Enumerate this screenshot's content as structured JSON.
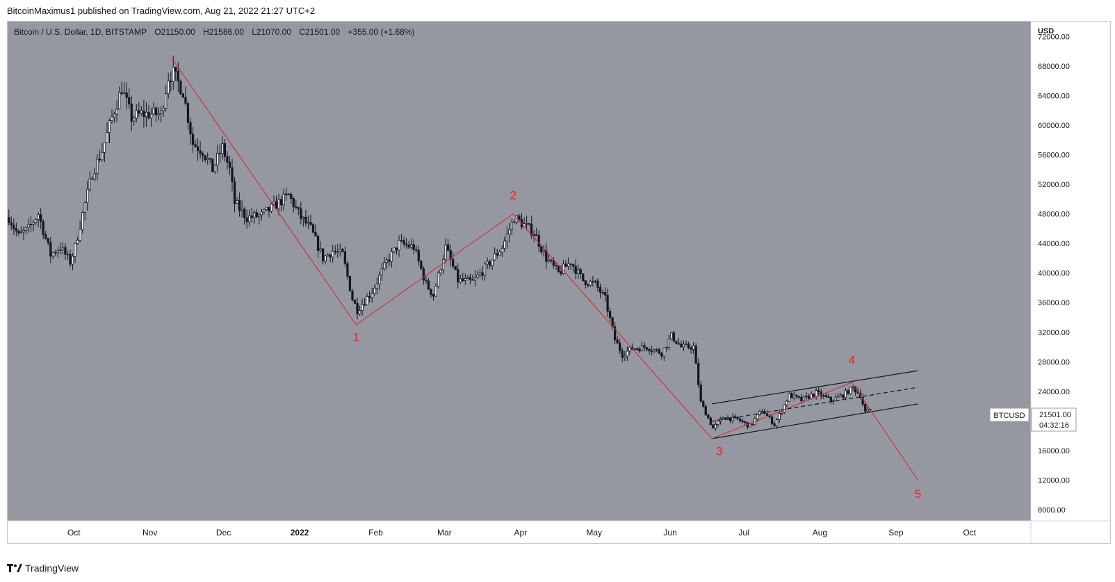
{
  "publisher": "BitcoinMaximus1 published on TradingView.com, Aug 21, 2022 21:27 UTC+2",
  "footer_logo_text": "TradingView",
  "colors": {
    "plot_bg": "#9598a1",
    "axis_bg": "#ffffff",
    "candle": "#131722",
    "wave_line": "#d32f2f",
    "label": "#ff1a1a",
    "channel": "#131722"
  },
  "legend": {
    "symbol": "Bitcoin / U.S. Dollar, 1D, BITSTAMP",
    "o_label": "O",
    "o_value": "21150.00",
    "h_label": "H",
    "h_value": "21586.00",
    "l_label": "L",
    "l_value": "21070.00",
    "c_label": "C",
    "c_value": "21501.00",
    "change": "+355.00 (+1.68%)"
  },
  "price_tag": {
    "symbol": "BTCUSD",
    "price": "21501.00",
    "countdown": "04:32:16"
  },
  "chart_data": {
    "type": "candlestick",
    "title": "Bitcoin / U.S. Dollar, 1D, BITSTAMP",
    "currency_label": "USD",
    "ylim": [
      6500,
      74000
    ],
    "y_ticks": [
      {
        "value": 72000,
        "label": "72000.00"
      },
      {
        "value": 68000,
        "label": "68000.00"
      },
      {
        "value": 64000,
        "label": "64000.00"
      },
      {
        "value": 60000,
        "label": "60000.00"
      },
      {
        "value": 56000,
        "label": "56000.00"
      },
      {
        "value": 52000,
        "label": "52000.00"
      },
      {
        "value": 48000,
        "label": "48000.00"
      },
      {
        "value": 44000,
        "label": "44000.00"
      },
      {
        "value": 40000,
        "label": "40000.00"
      },
      {
        "value": 36000,
        "label": "36000.00"
      },
      {
        "value": 32000,
        "label": "32000.00"
      },
      {
        "value": 28000,
        "label": "28000.00"
      },
      {
        "value": 24000,
        "label": "24000.00"
      },
      {
        "value": 16000,
        "label": "16000.00"
      },
      {
        "value": 12000,
        "label": "12000.00"
      },
      {
        "value": 8000,
        "label": "8000.00"
      }
    ],
    "x_range": [
      "2021-09-04",
      "2022-10-26"
    ],
    "x_ticks": [
      {
        "date": "2021-10-01",
        "label": "Oct"
      },
      {
        "date": "2021-11-01",
        "label": "Nov"
      },
      {
        "date": "2021-12-01",
        "label": "Dec"
      },
      {
        "date": "2022-01-01",
        "label": "2022",
        "bold": true
      },
      {
        "date": "2022-02-01",
        "label": "Feb"
      },
      {
        "date": "2022-03-01",
        "label": "Mar"
      },
      {
        "date": "2022-04-01",
        "label": "Apr"
      },
      {
        "date": "2022-05-01",
        "label": "May"
      },
      {
        "date": "2022-06-01",
        "label": "Jun"
      },
      {
        "date": "2022-07-01",
        "label": "Jul"
      },
      {
        "date": "2022-08-01",
        "label": "Aug"
      },
      {
        "date": "2022-09-01",
        "label": "Sep"
      },
      {
        "date": "2022-10-01",
        "label": "Oct"
      }
    ],
    "price_path": [
      [
        "2021-09-04",
        47500
      ],
      [
        "2021-09-08",
        45000
      ],
      [
        "2021-09-12",
        46000
      ],
      [
        "2021-09-16",
        48000
      ],
      [
        "2021-09-21",
        42500
      ],
      [
        "2021-09-25",
        43500
      ],
      [
        "2021-09-29",
        41500
      ],
      [
        "2021-10-01",
        43500
      ],
      [
        "2021-10-04",
        48000
      ],
      [
        "2021-10-08",
        53500
      ],
      [
        "2021-10-12",
        56500
      ],
      [
        "2021-10-16",
        61000
      ],
      [
        "2021-10-20",
        65000
      ],
      [
        "2021-10-24",
        61000
      ],
      [
        "2021-10-28",
        61500
      ],
      [
        "2021-11-01",
        61500
      ],
      [
        "2021-11-05",
        61500
      ],
      [
        "2021-11-08",
        66500
      ],
      [
        "2021-11-10",
        67000
      ],
      [
        "2021-11-14",
        64500
      ],
      [
        "2021-11-18",
        57500
      ],
      [
        "2021-11-22",
        56500
      ],
      [
        "2021-11-26",
        54000
      ],
      [
        "2021-11-30",
        57000
      ],
      [
        "2021-12-03",
        54000
      ],
      [
        "2021-12-05",
        49500
      ],
      [
        "2021-12-10",
        47500
      ],
      [
        "2021-12-16",
        47800
      ],
      [
        "2021-12-21",
        49000
      ],
      [
        "2021-12-27",
        50500
      ],
      [
        "2022-01-01",
        47500
      ],
      [
        "2022-01-05",
        46000
      ],
      [
        "2022-01-10",
        42000
      ],
      [
        "2022-01-14",
        43000
      ],
      [
        "2022-01-18",
        42500
      ],
      [
        "2022-01-22",
        36500
      ],
      [
        "2022-01-24",
        35000
      ],
      [
        "2022-01-30",
        37500
      ],
      [
        "2022-02-05",
        41500
      ],
      [
        "2022-02-10",
        44000
      ],
      [
        "2022-02-16",
        43500
      ],
      [
        "2022-02-21",
        38500
      ],
      [
        "2022-02-24",
        37000
      ],
      [
        "2022-03-01",
        43500
      ],
      [
        "2022-03-06",
        39000
      ],
      [
        "2022-03-12",
        38800
      ],
      [
        "2022-03-18",
        41000
      ],
      [
        "2022-03-24",
        43500
      ],
      [
        "2022-03-29",
        47500
      ],
      [
        "2022-04-02",
        46500
      ],
      [
        "2022-04-06",
        45500
      ],
      [
        "2022-04-11",
        42000
      ],
      [
        "2022-04-16",
        40000
      ],
      [
        "2022-04-21",
        41500
      ],
      [
        "2022-04-26",
        39000
      ],
      [
        "2022-05-01",
        38500
      ],
      [
        "2022-05-05",
        36500
      ],
      [
        "2022-05-09",
        31000
      ],
      [
        "2022-05-12",
        29000
      ],
      [
        "2022-05-16",
        29800
      ],
      [
        "2022-05-22",
        30000
      ],
      [
        "2022-05-28",
        29200
      ],
      [
        "2022-06-01",
        31500
      ],
      [
        "2022-06-05",
        30000
      ],
      [
        "2022-06-10",
        30000
      ],
      [
        "2022-06-13",
        22500
      ],
      [
        "2022-06-18",
        19000
      ],
      [
        "2022-06-22",
        20500
      ],
      [
        "2022-06-28",
        20200
      ],
      [
        "2022-07-03",
        19300
      ],
      [
        "2022-07-08",
        21500
      ],
      [
        "2022-07-13",
        19500
      ],
      [
        "2022-07-19",
        23500
      ],
      [
        "2022-07-24",
        22800
      ],
      [
        "2022-07-30",
        23800
      ],
      [
        "2022-08-05",
        22800
      ],
      [
        "2022-08-10",
        23500
      ],
      [
        "2022-08-14",
        24500
      ],
      [
        "2022-08-17",
        23500
      ],
      [
        "2022-08-19",
        21200
      ],
      [
        "2022-08-21",
        21501
      ]
    ],
    "annotations": {
      "wave_path": [
        [
          "2021-11-10",
          69000
        ],
        [
          "2022-01-24",
          33000
        ],
        [
          "2022-03-29",
          48000
        ],
        [
          "2022-06-18",
          17600
        ],
        [
          "2022-08-14",
          25200
        ],
        [
          "2022-09-10",
          12000
        ]
      ],
      "wave_labels": [
        {
          "text": "1",
          "date": "2022-01-24",
          "price": 30800
        },
        {
          "text": "2",
          "date": "2022-03-29",
          "price": 50000
        },
        {
          "text": "3",
          "date": "2022-06-21",
          "price": 15400
        },
        {
          "text": "4",
          "date": "2022-08-14",
          "price": 27700
        },
        {
          "text": "5",
          "date": "2022-09-10",
          "price": 9600
        }
      ],
      "channel": {
        "start_date": "2022-06-18",
        "end_date": "2022-09-10",
        "upper": [
          22300,
          26800
        ],
        "mid": [
          19950,
          24550
        ],
        "lower": [
          17600,
          22300
        ]
      }
    }
  }
}
